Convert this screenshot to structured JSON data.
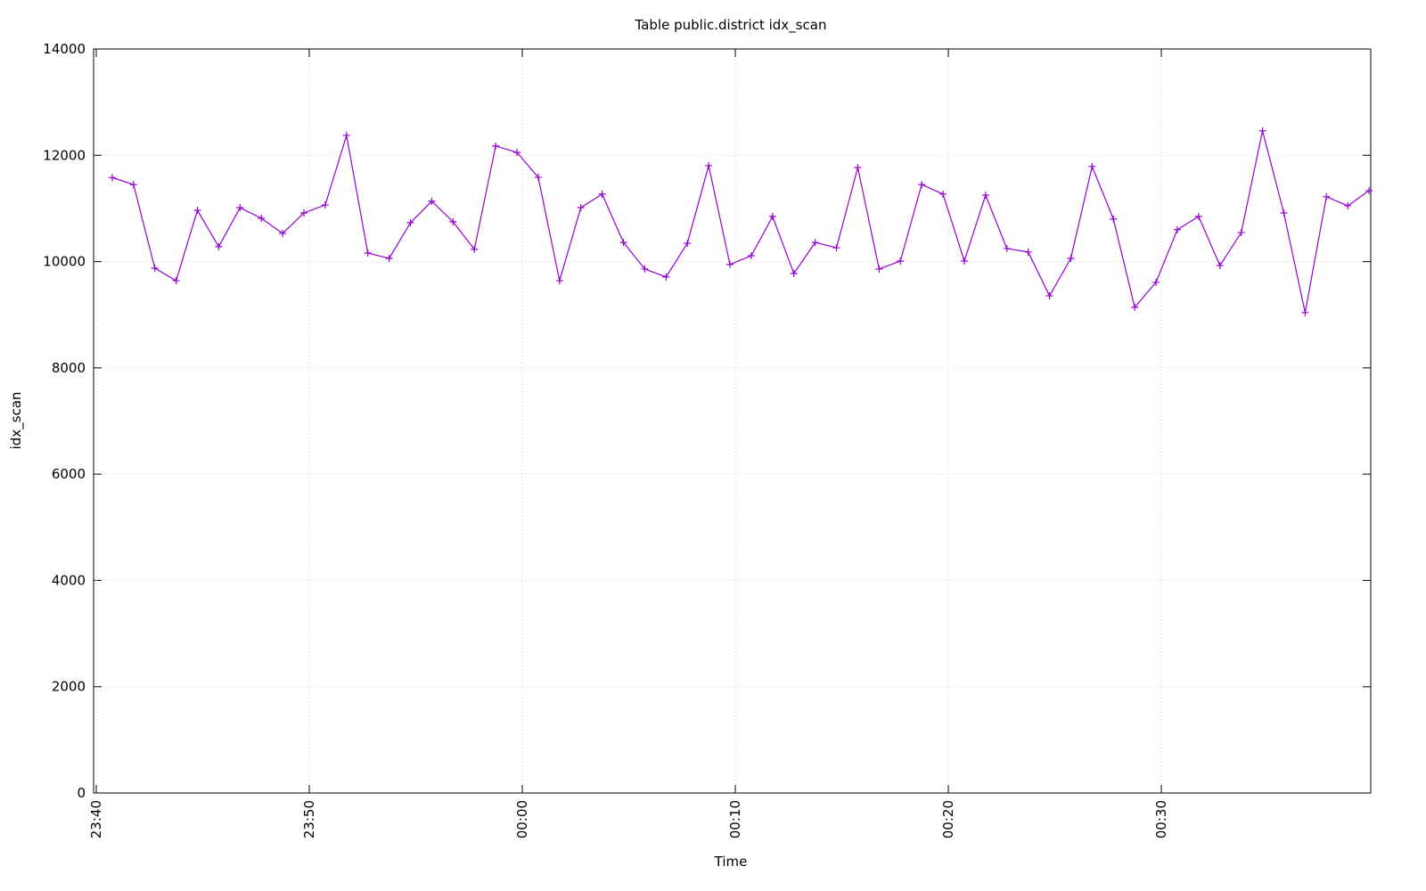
{
  "chart_data": {
    "type": "line",
    "title": "Table public.district idx_scan",
    "x_label": "Time",
    "y_label": "idx_scan",
    "xlim": [
      -0.125,
      59.83
    ],
    "ylim": [
      0,
      14000
    ],
    "xticks": [
      {
        "value": 0,
        "label": "23:40"
      },
      {
        "value": 10,
        "label": "23:50"
      },
      {
        "value": 20,
        "label": "00:00"
      },
      {
        "value": 30,
        "label": "00:10"
      },
      {
        "value": 40,
        "label": "00:20"
      },
      {
        "value": 50,
        "label": "00:30"
      }
    ],
    "yticks": [
      0,
      2000,
      4000,
      6000,
      8000,
      10000,
      12000,
      14000
    ],
    "grid": true,
    "series": [
      {
        "name": "idx_scan",
        "color": "#9400d3",
        "x": [
          0.75,
          1.75,
          2.75,
          3.75,
          4.75,
          5.75,
          6.75,
          7.75,
          8.75,
          9.75,
          10.75,
          11.75,
          12.75,
          13.75,
          14.75,
          15.75,
          16.75,
          17.75,
          18.75,
          19.75,
          20.75,
          21.75,
          22.75,
          23.75,
          24.75,
          25.75,
          26.75,
          27.75,
          28.75,
          29.75,
          30.75,
          31.75,
          32.75,
          33.75,
          34.75,
          35.75,
          36.75,
          37.75,
          38.75,
          39.75,
          40.75,
          41.75,
          42.75,
          43.75,
          44.75,
          45.75,
          46.75,
          47.75,
          48.75,
          49.75,
          50.75,
          51.75,
          52.75,
          53.75,
          54.75,
          55.75,
          56.75,
          57.75,
          58.75,
          59.75
        ],
        "values": [
          11580,
          11450,
          9875,
          9640,
          10965,
          10280,
          11015,
          10815,
          10530,
          10915,
          11065,
          12375,
          10160,
          10060,
          10730,
          11135,
          10750,
          10230,
          12175,
          12055,
          11585,
          9640,
          11015,
          11270,
          10360,
          9860,
          9710,
          10345,
          11805,
          9945,
          10110,
          10850,
          9775,
          10360,
          10260,
          11770,
          9860,
          10010,
          11450,
          11270,
          10010,
          11250,
          10245,
          10180,
          9355,
          10060,
          11790,
          10800,
          9140,
          9610,
          10600,
          10850,
          9925,
          10545,
          12460,
          10915,
          9040,
          11220,
          11050,
          11335
        ]
      }
    ]
  }
}
